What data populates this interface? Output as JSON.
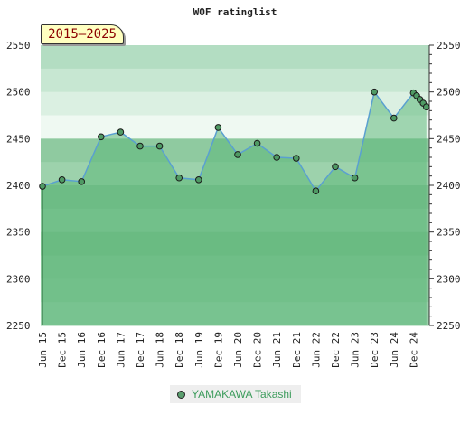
{
  "chart_data": {
    "type": "area",
    "title": "WOF ratinglist",
    "period_label": "2015–2025",
    "ylim": [
      2250,
      2550
    ],
    "y_ticks": [
      2250,
      2300,
      2350,
      2400,
      2450,
      2500,
      2550
    ],
    "x_tick_labels": [
      "Jun 15",
      "Dec 15",
      "Jun 16",
      "Dec 16",
      "Jun 17",
      "Dec 17",
      "Jun 18",
      "Dec 18",
      "Jun 19",
      "Dec 19",
      "Jun 20",
      "Dec 20",
      "Jun 21",
      "Dec 21",
      "Jun 22",
      "Dec 22",
      "Jun 23",
      "Dec 23",
      "Jun 24",
      "Dec 24"
    ],
    "legend_position": "bottom",
    "series": [
      {
        "name": "YAMAKAWA Takashi",
        "color": "#5aa0d0",
        "fill": "#5cb87a",
        "points": [
          {
            "x": "Jun 15",
            "y": 2399
          },
          {
            "x": "Dec 15",
            "y": 2406
          },
          {
            "x": "Jun 16",
            "y": 2404
          },
          {
            "x": "Dec 16",
            "y": 2452
          },
          {
            "x": "Jun 17",
            "y": 2457
          },
          {
            "x": "Dec 17",
            "y": 2442
          },
          {
            "x": "Jun 18",
            "y": 2442
          },
          {
            "x": "Dec 18",
            "y": 2408
          },
          {
            "x": "Jun 19",
            "y": 2406
          },
          {
            "x": "Dec 19",
            "y": 2462
          },
          {
            "x": "Jun 20",
            "y": 2433
          },
          {
            "x": "Dec 20",
            "y": 2445
          },
          {
            "x": "Jun 21",
            "y": 2430
          },
          {
            "x": "Dec 21",
            "y": 2429
          },
          {
            "x": "Jun 22",
            "y": 2394
          },
          {
            "x": "Dec 22",
            "y": 2420
          },
          {
            "x": "Jun 23",
            "y": 2408
          },
          {
            "x": "Dec 23",
            "y": 2500
          },
          {
            "x": "Jun 24",
            "y": 2472
          },
          {
            "x": "Dec 24",
            "y": 2499
          },
          {
            "x": "Jan 25",
            "y": 2496
          },
          {
            "x": "Feb 25",
            "y": 2492
          },
          {
            "x": "Mar 25",
            "y": 2488
          },
          {
            "x": "Apr 25",
            "y": 2484
          }
        ]
      }
    ],
    "band_colors": [
      "#b3ddc2",
      "#c7e7d2",
      "#dbf0e2",
      "#eff9f2",
      "#8fcaa0",
      "#9dd2ac",
      "#80c292",
      "#8cc99e",
      "#7bbf8d",
      "#86c598",
      "#8cc99e",
      "#9ad0aa"
    ]
  }
}
